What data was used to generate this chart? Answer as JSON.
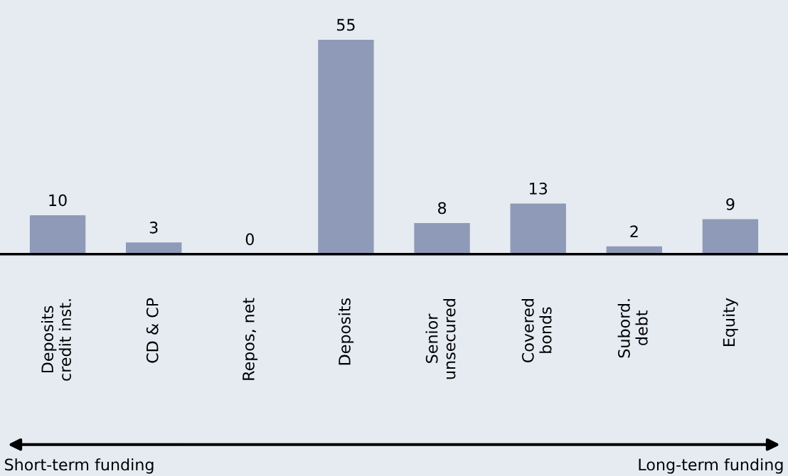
{
  "chart_data": {
    "type": "bar",
    "categories": [
      "Deposits\ncredit inst.",
      "CD & CP",
      "Repos, net",
      "Deposits",
      "Senior\nunsecured",
      "Covered\nbonds",
      "Subord.\ndebt",
      "Equity"
    ],
    "values": [
      10,
      3,
      0,
      55,
      8,
      13,
      2,
      9
    ],
    "color": "#8e9ab7",
    "data_labels": true,
    "grid": false,
    "annotations": [
      "Short-term funding",
      "Long-term funding"
    ]
  }
}
